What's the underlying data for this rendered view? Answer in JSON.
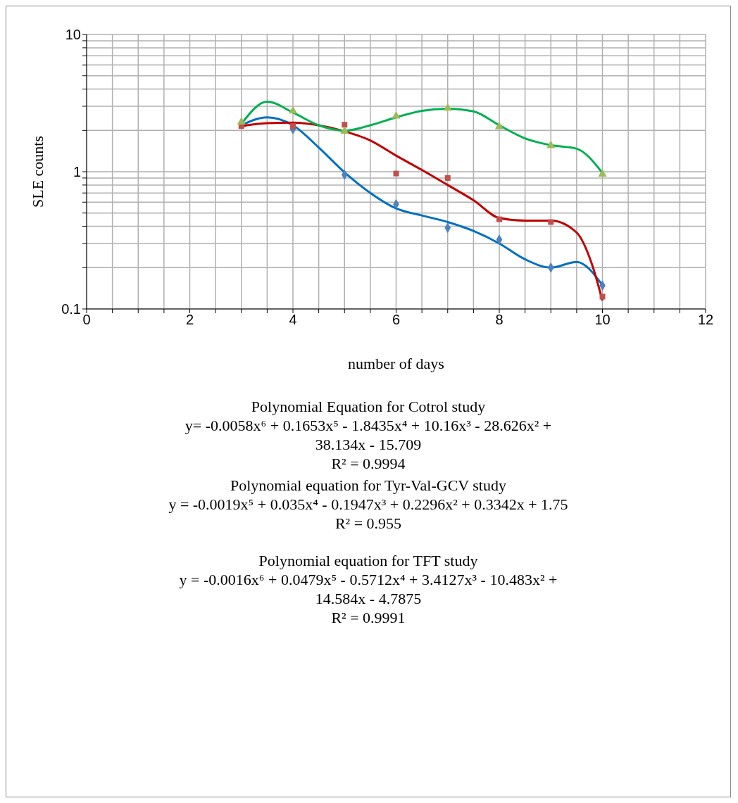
{
  "chart_data": {
    "type": "scatter",
    "xlabel": "number of days",
    "ylabel": "SLE counts",
    "log": "y",
    "grid": true,
    "legend": false,
    "x": [
      3,
      4,
      5,
      6,
      7,
      8,
      9,
      10
    ],
    "xlim": [
      0,
      12
    ],
    "xticks": [
      0,
      {
        "value": 0.5,
        "label": null
      },
      {
        "value": 1,
        "label": null
      },
      {
        "value": 1.5,
        "label": null
      },
      2,
      {
        "value": 2.5,
        "label": null
      },
      {
        "value": 3,
        "label": null
      },
      {
        "value": 3.5,
        "label": null
      },
      4,
      {
        "value": 4.5,
        "label": null
      },
      {
        "value": 5,
        "label": null
      },
      {
        "value": 5.5,
        "label": null
      },
      6,
      {
        "value": 6.5,
        "label": null
      },
      {
        "value": 7,
        "label": null
      },
      {
        "value": 7.5,
        "label": null
      },
      8,
      {
        "value": 8.5,
        "label": null
      },
      {
        "value": 9,
        "label": null
      },
      {
        "value": 9.5,
        "label": null
      },
      10,
      {
        "value": 10.5,
        "label": null
      },
      {
        "value": 11,
        "label": null
      },
      {
        "value": 11.5,
        "label": null
      },
      12
    ],
    "ylim": [
      0.1,
      10
    ],
    "yticks": [
      0.1,
      {
        "value": 0.2,
        "label": null
      },
      {
        "value": 0.3,
        "label": null
      },
      {
        "value": 0.4,
        "label": null
      },
      {
        "value": 0.5,
        "label": null
      },
      {
        "value": 0.6,
        "label": null
      },
      {
        "value": 0.7,
        "label": null
      },
      {
        "value": 0.8,
        "label": null
      },
      {
        "value": 0.9,
        "label": null
      },
      1,
      {
        "value": 2,
        "label": null
      },
      {
        "value": 3,
        "label": null
      },
      {
        "value": 4,
        "label": null
      },
      {
        "value": 5,
        "label": null
      },
      {
        "value": 6,
        "label": null
      },
      {
        "value": 7,
        "label": null
      },
      {
        "value": 8,
        "label": null
      },
      {
        "value": 9,
        "label": null
      },
      10
    ],
    "series": [
      {
        "color": "#4f81bd",
        "marker": "diamond",
        "values": [
          null,
          2.04,
          0.95,
          0.58,
          0.39,
          0.32,
          0.2,
          0.148
        ]
      },
      {
        "color": "#c0504d",
        "marker": "square",
        "values": [
          2.15,
          2.15,
          2.2,
          0.97,
          0.9,
          0.45,
          0.43,
          0.123
        ]
      },
      {
        "color": "#9bbb59",
        "marker": "triangle",
        "values": [
          2.3,
          2.77,
          1.97,
          2.54,
          2.9,
          2.13,
          1.55,
          0.96
        ]
      },
      {
        "type": "line",
        "color": "#0070c0",
        "marker": "none",
        "x": [
          3,
          3.5,
          4,
          4.5,
          5,
          5.5,
          6,
          6.5,
          7,
          7.5,
          8,
          8.5,
          9,
          9.5,
          10
        ],
        "values": [
          2.18,
          2.49,
          2.18,
          1.5,
          0.99,
          0.7,
          0.54,
          0.48,
          0.43,
          0.37,
          0.3,
          0.23,
          0.2,
          0.22,
          0.149
        ]
      },
      {
        "type": "line",
        "color": "#c00000",
        "marker": "none",
        "x": [
          3,
          3.5,
          4,
          4.5,
          5,
          5.5,
          6,
          6.5,
          7,
          7.5,
          8,
          8.5,
          9,
          9.5,
          9.8,
          10
        ],
        "values": [
          2.15,
          2.26,
          2.28,
          2.18,
          1.97,
          1.69,
          1.31,
          1.03,
          0.8,
          0.62,
          0.46,
          0.44,
          0.44,
          0.36,
          0.21,
          0.115
        ]
      },
      {
        "type": "line",
        "color": "#00b050",
        "marker": "none",
        "x": [
          3,
          3.5,
          4,
          4.5,
          5,
          5.5,
          6,
          6.5,
          7,
          7.5,
          8,
          8.5,
          9,
          9.5,
          10
        ],
        "values": [
          2.23,
          3.24,
          2.7,
          2.18,
          1.99,
          2.18,
          2.49,
          2.78,
          2.88,
          2.75,
          2.18,
          1.75,
          1.56,
          1.47,
          0.98
        ]
      }
    ],
    "annotations": [
      "Polynomial Equation for Cotrol study\ny= -0.0058x⁶ + 0.1653x⁵ - 1.8435x⁴ + 10.16x³ - 28.626x² +\n38.134x - 15.709\nR² = 0.9994",
      "Polynomial equation for Tyr-Val-GCV study\ny = -0.0019x⁵ + 0.035x⁴ - 0.1947x³ + 0.2296x² + 0.3342x + 1.75\nR² = 0.955",
      "Polynomial equation for TFT study\ny = -0.0016x⁶ + 0.0479x⁵ - 0.5712x⁴ + 3.4127x³ - 10.483x² +\n14.584x - 4.7875\nR² = 0.9991"
    ]
  }
}
